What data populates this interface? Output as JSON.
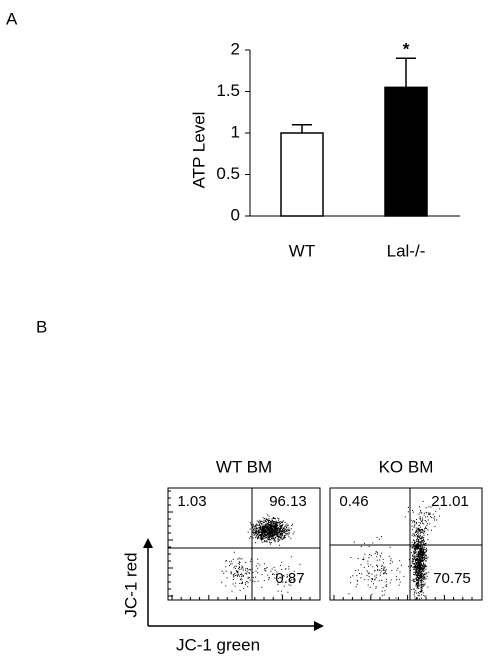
{
  "panels": [
    "A",
    "B"
  ],
  "chart_data": {
    "type": "bar",
    "ylabel": "ATP Level",
    "categories": [
      "WT",
      "Lal-/-"
    ],
    "values": [
      1.0,
      1.55
    ],
    "errors": [
      0.1,
      0.35
    ],
    "colors": [
      "#ffffff",
      "#000000"
    ],
    "annotation": "*",
    "ylim": [
      0,
      2
    ],
    "yticks": [
      0,
      0.5,
      1,
      1.5,
      2
    ]
  },
  "flow": {
    "xlabel": "JC-1 green",
    "ylabel": "JC-1 red",
    "plots": [
      {
        "title": "WT BM",
        "quadrants": [
          1.03,
          96.13,
          0.87
        ]
      },
      {
        "title": "KO BM",
        "quadrants": [
          0.46,
          21.01,
          70.75
        ]
      }
    ]
  }
}
